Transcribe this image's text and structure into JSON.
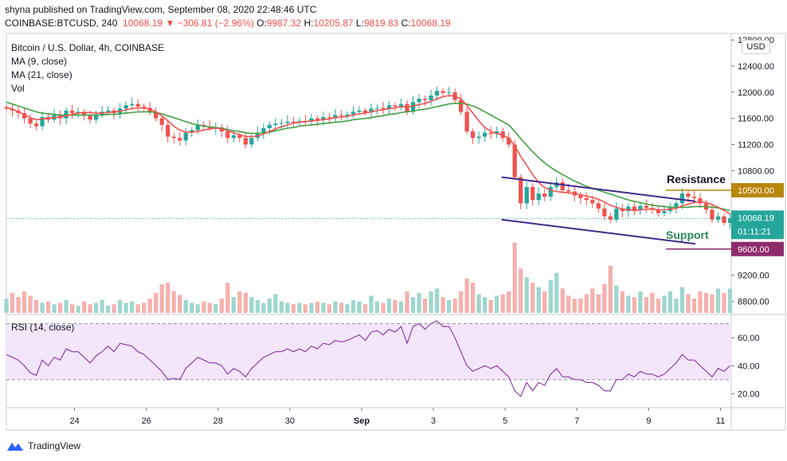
{
  "header": {
    "published": "shyna published on TradingView.com, September 08, 2020 22:48:46 UTC",
    "symbol": "COINBASE:BTCUSD, 240",
    "last": "10068.19",
    "change_arrow": "▼",
    "change": "−306.81 (−2.96%)",
    "o_label": "O:",
    "o_value": "9987.32",
    "h_label": "H:",
    "h_value": "10205.87",
    "l_label": "L:",
    "l_value": "9819.83",
    "c_label": "C:",
    "c_value": "10068.19"
  },
  "legend": {
    "title": "Bitcoin / U.S. Dollar, 4h, COINBASE",
    "ma9": "MA (9, close)",
    "ma21": "MA (21, close)",
    "vol": "Vol",
    "rsi": "RSI (14, close)"
  },
  "currency_button": "USD",
  "annotations": {
    "resistance": "Resistance",
    "support": "Support"
  },
  "footer": {
    "brand": "TradingView"
  },
  "colors": {
    "up": "#26a69a",
    "down": "#ef5350",
    "ma9": "#ef5350",
    "ma21": "#43a047",
    "channel": "#3f2a8c",
    "resistance": "#b8860b",
    "support": "#8e2c6b",
    "rsi_line": "#8e3fa8",
    "rsi_band": "#f3e6fb"
  },
  "chart_data": {
    "type": "candlestick",
    "title": "Bitcoin / U.S. Dollar, 4h, COINBASE",
    "price_axis": {
      "ticks": [
        "12800.00",
        "12400.00",
        "12000.00",
        "11600.00",
        "11200.00",
        "10800.00",
        "9200.00",
        "8800.00"
      ],
      "tick_values": [
        12800,
        12400,
        12000,
        11600,
        11200,
        10800,
        9200,
        8800
      ],
      "ylim": [
        8610,
        12900
      ]
    },
    "time_axis": {
      "labels": [
        "24",
        "26",
        "28",
        "30",
        "Sep",
        "3",
        "5",
        "7",
        "9",
        "11"
      ],
      "label_days": [
        24,
        26,
        28,
        30,
        32,
        34,
        36,
        38,
        40,
        42
      ],
      "start_day": 22.1,
      "xlim": [
        22.1,
        42.3
      ]
    },
    "price_labels": {
      "last_price": "10068.19",
      "last_value": 10068.19,
      "countdown": "01:11:21",
      "resistance": "10500.00",
      "resistance_value": 10500,
      "support": "9600.00",
      "support_value": 9600
    },
    "channel": {
      "upper": [
        [
          35.9,
          10700
        ],
        [
          41.3,
          10330
        ]
      ],
      "lower": [
        [
          35.9,
          10050
        ],
        [
          41.3,
          9680
        ]
      ]
    },
    "closes": [
      11750,
      11720,
      11680,
      11600,
      11520,
      11480,
      11620,
      11580,
      11650,
      11600,
      11720,
      11680,
      11700,
      11640,
      11580,
      11660,
      11700,
      11720,
      11680,
      11750,
      11800,
      11820,
      11780,
      11760,
      11700,
      11600,
      11500,
      11320,
      11300,
      11260,
      11380,
      11420,
      11500,
      11480,
      11450,
      11460,
      11400,
      11300,
      11340,
      11300,
      11200,
      11300,
      11380,
      11450,
      11500,
      11520,
      11530,
      11550,
      11540,
      11560,
      11550,
      11600,
      11580,
      11620,
      11610,
      11650,
      11640,
      11660,
      11700,
      11720,
      11690,
      11750,
      11760,
      11740,
      11800,
      11780,
      11820,
      11700,
      11850,
      11900,
      11880,
      11950,
      12020,
      11990,
      12000,
      11880,
      11700,
      11400,
      11300,
      11320,
      11380,
      11360,
      11400,
      11300,
      11200,
      10700,
      10300,
      10550,
      10350,
      10450,
      10400,
      10550,
      10620,
      10500,
      10480,
      10420,
      10380,
      10350,
      10300,
      10220,
      10100,
      10050,
      10220,
      10180,
      10250,
      10200,
      10260,
      10230,
      10200,
      10150,
      10180,
      10240,
      10300,
      10450,
      10400,
      10380,
      10300,
      10200,
      10050,
      10100,
      10000,
      10068
    ],
    "ma9": [
      11770,
      11740,
      11700,
      11660,
      11610,
      11580,
      11590,
      11600,
      11610,
      11620,
      11640,
      11660,
      11680,
      11690,
      11690,
      11680,
      11680,
      11690,
      11700,
      11710,
      11730,
      11750,
      11760,
      11760,
      11740,
      11700,
      11640,
      11560,
      11480,
      11420,
      11390,
      11390,
      11400,
      11420,
      11440,
      11450,
      11440,
      11410,
      11380,
      11350,
      11320,
      11320,
      11330,
      11360,
      11400,
      11440,
      11470,
      11500,
      11530,
      11540,
      11550,
      11560,
      11570,
      11580,
      11590,
      11610,
      11620,
      11630,
      11650,
      11670,
      11680,
      11700,
      11720,
      11730,
      11750,
      11760,
      11780,
      11770,
      11790,
      11810,
      11830,
      11860,
      11900,
      11930,
      11950,
      11940,
      11900,
      11800,
      11680,
      11560,
      11460,
      11400,
      11370,
      11340,
      11300,
      11180,
      11020,
      10880,
      10740,
      10620,
      10540,
      10500,
      10480,
      10470,
      10460,
      10450,
      10430,
      10410,
      10390,
      10360,
      10320,
      10270,
      10240,
      10210,
      10200,
      10190,
      10200,
      10210,
      10210,
      10200,
      10200,
      10210,
      10220,
      10260,
      10290,
      10310,
      10320,
      10310,
      10280,
      10240,
      10190,
      10140
    ],
    "ma21": [
      11850,
      11820,
      11790,
      11760,
      11730,
      11700,
      11680,
      11670,
      11660,
      11650,
      11650,
      11650,
      11650,
      11650,
      11650,
      11650,
      11650,
      11660,
      11660,
      11670,
      11680,
      11690,
      11700,
      11700,
      11700,
      11690,
      11670,
      11640,
      11610,
      11580,
      11550,
      11520,
      11500,
      11480,
      11470,
      11460,
      11450,
      11430,
      11410,
      11400,
      11380,
      11370,
      11370,
      11380,
      11390,
      11410,
      11430,
      11450,
      11460,
      11480,
      11490,
      11500,
      11510,
      11520,
      11530,
      11540,
      11550,
      11560,
      11580,
      11590,
      11600,
      11610,
      11630,
      11640,
      11660,
      11670,
      11690,
      11700,
      11710,
      11730,
      11740,
      11760,
      11780,
      11800,
      11820,
      11830,
      11830,
      11820,
      11790,
      11750,
      11700,
      11650,
      11600,
      11550,
      11500,
      11400,
      11290,
      11190,
      11090,
      11000,
      10920,
      10850,
      10790,
      10740,
      10690,
      10640,
      10600,
      10560,
      10530,
      10500,
      10470,
      10440,
      10410,
      10380,
      10350,
      10330,
      10310,
      10290,
      10270,
      10260,
      10250,
      10240,
      10240,
      10240,
      10240,
      10250,
      10250,
      10250,
      10240,
      10230,
      10210,
      10190
    ],
    "volume_max": 1.0,
    "volume": [
      0.2,
      0.28,
      0.22,
      0.3,
      0.24,
      0.18,
      0.14,
      0.16,
      0.12,
      0.14,
      0.18,
      0.12,
      0.1,
      0.16,
      0.12,
      0.14,
      0.18,
      0.1,
      0.12,
      0.18,
      0.14,
      0.16,
      0.12,
      0.14,
      0.2,
      0.28,
      0.4,
      0.42,
      0.3,
      0.25,
      0.18,
      0.14,
      0.12,
      0.16,
      0.14,
      0.12,
      0.2,
      0.42,
      0.22,
      0.3,
      0.28,
      0.22,
      0.18,
      0.14,
      0.2,
      0.26,
      0.16,
      0.14,
      0.12,
      0.14,
      0.12,
      0.14,
      0.16,
      0.14,
      0.12,
      0.16,
      0.14,
      0.12,
      0.18,
      0.16,
      0.12,
      0.24,
      0.16,
      0.14,
      0.2,
      0.18,
      0.16,
      0.3,
      0.22,
      0.28,
      0.2,
      0.3,
      0.34,
      0.22,
      0.18,
      0.2,
      0.3,
      0.48,
      0.42,
      0.26,
      0.22,
      0.18,
      0.24,
      0.26,
      0.3,
      0.98,
      0.62,
      0.5,
      0.42,
      0.36,
      0.3,
      0.46,
      0.56,
      0.34,
      0.24,
      0.2,
      0.2,
      0.26,
      0.34,
      0.26,
      0.4,
      0.66,
      0.38,
      0.3,
      0.24,
      0.22,
      0.3,
      0.22,
      0.28,
      0.2,
      0.24,
      0.3,
      0.2,
      0.36,
      0.26,
      0.2,
      0.3,
      0.28,
      0.26,
      0.34,
      0.28,
      0.34
    ],
    "volume_axis": {
      "ylim": [
        0,
        1.0
      ]
    },
    "rsi": {
      "title": "RSI (14, close)",
      "ticks": [
        "60.00",
        "40.00",
        "20.00"
      ],
      "tick_values": [
        60,
        40,
        20
      ],
      "band": [
        30,
        70
      ],
      "ylim": [
        10,
        76
      ],
      "values": [
        48,
        46,
        44,
        40,
        35,
        33,
        44,
        40,
        46,
        44,
        52,
        50,
        50,
        46,
        42,
        47,
        50,
        54,
        50,
        56,
        55,
        54,
        50,
        48,
        44,
        40,
        36,
        30,
        31,
        30,
        38,
        42,
        46,
        44,
        42,
        42,
        40,
        34,
        38,
        36,
        32,
        38,
        42,
        46,
        48,
        50,
        50,
        52,
        50,
        52,
        50,
        54,
        52,
        56,
        55,
        58,
        57,
        58,
        60,
        62,
        58,
        64,
        65,
        62,
        66,
        64,
        68,
        56,
        68,
        70,
        66,
        70,
        72,
        68,
        68,
        60,
        50,
        40,
        36,
        38,
        40,
        38,
        40,
        36,
        32,
        22,
        18,
        28,
        22,
        28,
        26,
        34,
        38,
        32,
        32,
        30,
        30,
        28,
        28,
        26,
        22,
        22,
        30,
        30,
        34,
        32,
        36,
        34,
        34,
        32,
        34,
        38,
        42,
        48,
        44,
        44,
        40,
        36,
        32,
        38,
        36,
        40
      ]
    }
  }
}
